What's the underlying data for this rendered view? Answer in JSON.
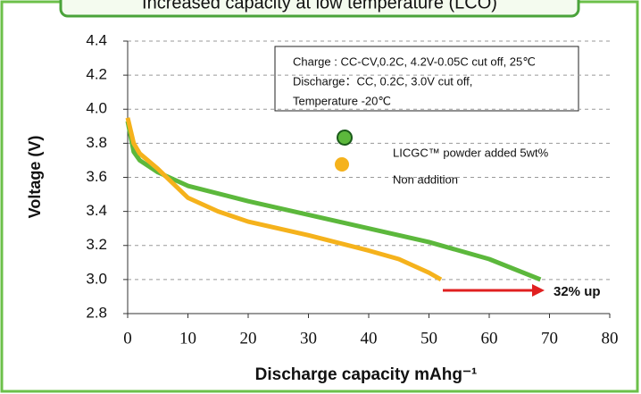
{
  "chart_data": {
    "type": "line",
    "title": "Increased capacity at low temperature (LCO)",
    "x_label": "Discharge capacity mAhg⁻¹",
    "y_label": "Voltage (V)",
    "conditions": [
      "Charge : CC-CV,0.2C, 4.2V-0.05C cut off, 25℃",
      "Discharge：CC, 0.2C, 3.0V cut off,",
      "Temperature -20℃"
    ],
    "annotation": "32% up",
    "xlim": [
      0,
      80
    ],
    "xticks": [
      0,
      10,
      20,
      30,
      40,
      50,
      60,
      70,
      80
    ],
    "ylim": [
      2.8,
      4.4
    ],
    "yticks": [
      2.8,
      {
        "value": 3,
        "label": "3.0"
      },
      3.2,
      3.4,
      3.6,
      3.8,
      {
        "value": 4,
        "label": "4.0"
      },
      4.2,
      4.4
    ],
    "grid": true,
    "series": [
      {
        "name": "LICGC™ powder added 5wt%",
        "color": "#5cb83c",
        "x": [
          0,
          1,
          2,
          5,
          10,
          20,
          30,
          40,
          50,
          60,
          68.5
        ],
        "values": [
          3.93,
          3.75,
          3.7,
          3.63,
          3.55,
          3.46,
          3.38,
          3.3,
          3.22,
          3.12,
          3.0
        ]
      },
      {
        "name": "Non addition",
        "color": "#f5b21c",
        "x": [
          0,
          1,
          2,
          5,
          10,
          15,
          20,
          30,
          40,
          45,
          50,
          52
        ],
        "values": [
          3.95,
          3.8,
          3.74,
          3.65,
          3.48,
          3.4,
          3.34,
          3.26,
          3.17,
          3.12,
          3.04,
          3.0
        ]
      }
    ]
  }
}
